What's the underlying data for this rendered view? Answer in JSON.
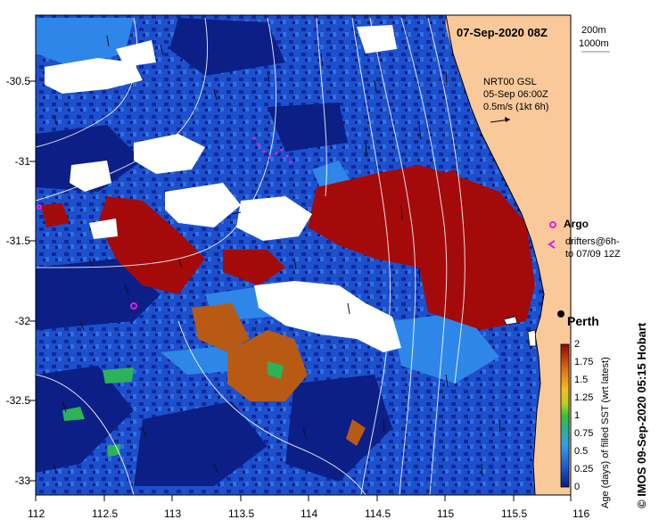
{
  "map": {
    "title": "07-Sep-2020 08Z",
    "region": "Perth",
    "isobaths": [
      "200m",
      "1000m"
    ],
    "current_note": {
      "product": "NRT00 GSL",
      "date": "05-Sep 06:00Z",
      "scale": "0.5m/s (1kt 6h)"
    },
    "legend": {
      "argo": "Argo",
      "drifters_line1": "drifters@6h-",
      "drifters_line2": "to 07/09 12Z"
    },
    "credit": "© IMOS 09-Sep-2020 05:15 Hobart",
    "x_ticks": [
      "112",
      "112.5",
      "113",
      "113.5",
      "114",
      "114.5",
      "115",
      "115.5",
      "116"
    ],
    "y_ticks": [
      "-30.5",
      "-31",
      "-31.5",
      "-32",
      "-32.5",
      "-33"
    ]
  },
  "colorbar": {
    "title": "Age (days) of filled SST (wrt latest)",
    "ticks": [
      "0",
      "0.25",
      "0.5",
      "0.75",
      "1",
      "1.25",
      "1.5",
      "1.75",
      "2"
    ]
  },
  "colors": {
    "land": "#F9C99A",
    "deep_blue": "#1A3AB8",
    "mid_blue": "#1F5FD6",
    "dark_blue": "#0B1F86",
    "red": "#A40A0A",
    "cloud": "#FFFFFF",
    "argo_magenta": "#E020E0"
  }
}
